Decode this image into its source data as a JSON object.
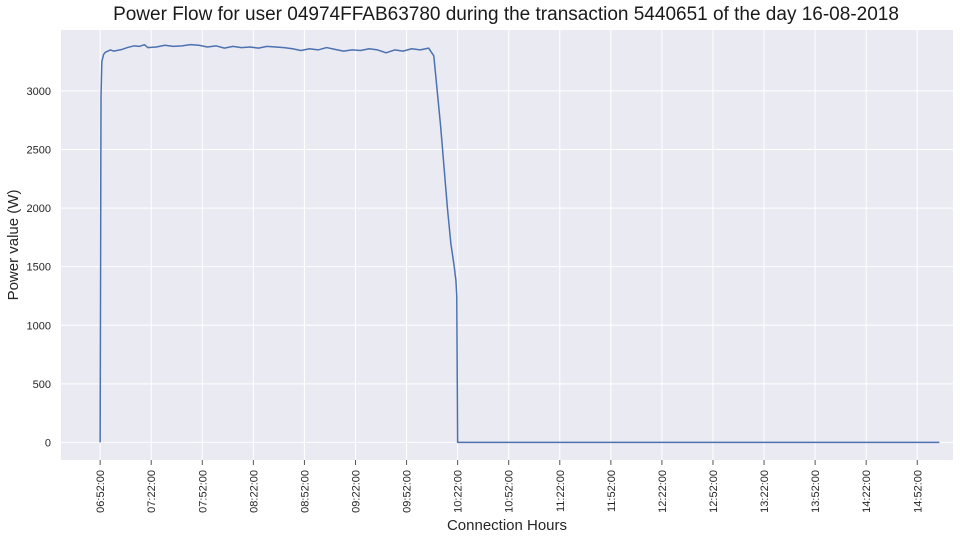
{
  "chart_data": {
    "type": "line",
    "title": "Power Flow for user 04974FFAB63780 during the transaction 5440651 of the day 16-08-2018",
    "xlabel": "Connection Hours",
    "ylabel": "Power value (W)",
    "x_tick_labels": [
      "06:52:00",
      "07:22:00",
      "07:52:00",
      "08:22:00",
      "08:52:00",
      "09:22:00",
      "09:52:00",
      "10:22:00",
      "10:52:00",
      "11:22:00",
      "11:52:00",
      "12:22:00",
      "12:52:00",
      "13:22:00",
      "13:52:00",
      "14:22:00",
      "14:52:00"
    ],
    "x_tick_minutes": [
      412,
      442,
      472,
      502,
      532,
      562,
      592,
      622,
      652,
      682,
      712,
      742,
      772,
      802,
      832,
      862,
      892
    ],
    "xlim": [
      "06:29:00",
      "15:13:00"
    ],
    "y_ticks": [
      0,
      500,
      1000,
      1500,
      2000,
      2500,
      3000
    ],
    "ylim": [
      -150,
      3520
    ],
    "grid": true,
    "colors": {
      "line": "#4c72b0",
      "plot_background": "#eaeaf2",
      "grid": "#ffffff"
    },
    "series": [
      {
        "x": [
          "06:52:00",
          "06:52:30",
          "06:53:00",
          "06:54:00",
          "06:55:00",
          "06:58:00",
          "07:00:00",
          "07:05:00",
          "07:08:00",
          "07:12:00",
          "07:15:00",
          "07:18:00",
          "07:20:00",
          "07:25:00",
          "07:30:00",
          "07:35:00",
          "07:40:00",
          "07:45:00",
          "07:50:00",
          "07:55:00",
          "08:00:00",
          "08:05:00",
          "08:10:00",
          "08:15:00",
          "08:20:00",
          "08:25:00",
          "08:30:00",
          "08:35:00",
          "08:40:00",
          "08:45:00",
          "08:50:00",
          "08:55:00",
          "09:00:00",
          "09:05:00",
          "09:10:00",
          "09:15:00",
          "09:20:00",
          "09:25:00",
          "09:30:00",
          "09:35:00",
          "09:40:00",
          "09:45:00",
          "09:50:00",
          "09:55:00",
          "10:00:00",
          "10:05:00",
          "10:08:00",
          "10:10:00",
          "10:12:00",
          "10:14:00",
          "10:16:00",
          "10:18:00",
          "10:20:00",
          "10:21:00",
          "10:21:30",
          "10:22:00",
          "10:30:00",
          "11:00:00",
          "12:00:00",
          "13:00:00",
          "14:00:00",
          "15:00:00",
          "15:05:00"
        ],
        "values": [
          0,
          2950,
          3250,
          3310,
          3330,
          3350,
          3340,
          3355,
          3370,
          3385,
          3380,
          3395,
          3370,
          3375,
          3390,
          3380,
          3385,
          3395,
          3390,
          3375,
          3385,
          3365,
          3380,
          3370,
          3375,
          3365,
          3380,
          3375,
          3370,
          3360,
          3345,
          3360,
          3350,
          3370,
          3355,
          3340,
          3350,
          3345,
          3360,
          3350,
          3325,
          3350,
          3340,
          3360,
          3350,
          3365,
          3300,
          3000,
          2700,
          2350,
          2000,
          1700,
          1500,
          1380,
          1250,
          0,
          0,
          0,
          0,
          0,
          0,
          0,
          0
        ]
      }
    ]
  }
}
